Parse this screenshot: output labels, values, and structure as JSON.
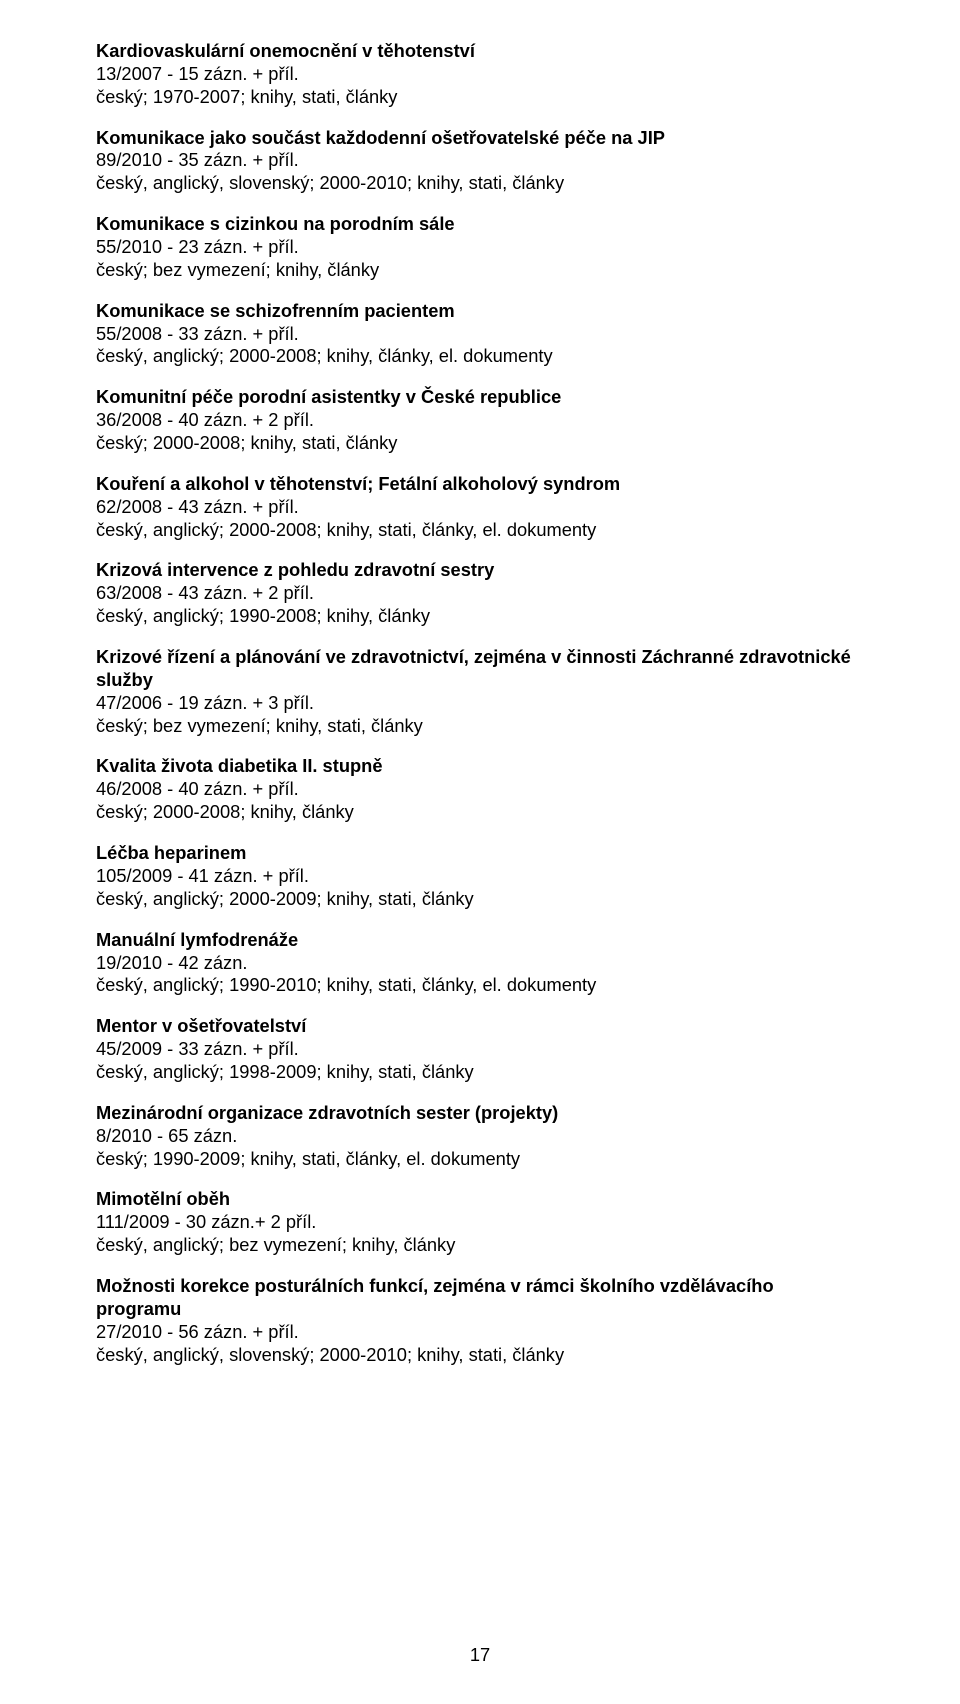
{
  "page_number": "17",
  "entries": [
    {
      "title": "Kardiovaskulární onemocnění v těhotenství",
      "pages": "13/2007 - 15 zázn. + příl.",
      "langs": "český; 1970-2007; knihy, stati, články"
    },
    {
      "title": "Komunikace jako součást každodenní ošetřovatelské péče na JIP",
      "pages": "89/2010 - 35 zázn. + příl.",
      "langs": "český, anglický, slovenský; 2000-2010; knihy, stati, články"
    },
    {
      "title": "Komunikace s cizinkou na porodním sále",
      "pages": "55/2010 - 23 zázn. + příl.",
      "langs": "český; bez vymezení; knihy, články"
    },
    {
      "title": "Komunikace se schizofrenním pacientem",
      "pages": "55/2008 - 33 zázn. + příl.",
      "langs": "český, anglický; 2000-2008; knihy, články, el. dokumenty"
    },
    {
      "title": "Komunitní péče porodní asistentky v České republice",
      "pages": "36/2008 - 40 zázn. + 2 příl.",
      "langs": "český; 2000-2008; knihy, stati, články"
    },
    {
      "title": "Kouření a alkohol v těhotenství; Fetální alkoholový syndrom",
      "pages": "62/2008 - 43 zázn. + příl.",
      "langs": "český, anglický; 2000-2008; knihy, stati, články, el. dokumenty"
    },
    {
      "title": "Krizová intervence z pohledu zdravotní sestry",
      "pages": "63/2008 - 43 zázn. + 2 příl.",
      "langs": "český, anglický; 1990-2008; knihy, články"
    },
    {
      "title": "Krizové řízení a plánování ve zdravotnictví, zejména v činnosti Záchranné zdravotnické služby",
      "pages": "47/2006 - 19 zázn. + 3 příl.",
      "langs": "český; bez vymezení; knihy, stati, články"
    },
    {
      "title": "Kvalita života diabetika II. stupně",
      "pages": "46/2008 - 40 zázn. + příl.",
      "langs": "český; 2000-2008; knihy, články"
    },
    {
      "title": "Léčba heparinem",
      "pages": "105/2009 - 41 zázn. + příl.",
      "langs": "český, anglický; 2000-2009; knihy, stati, články"
    },
    {
      "title": "Manuální lymfodrenáže",
      "pages": "19/2010 - 42 zázn.",
      "langs": "český, anglický; 1990-2010; knihy, stati, články, el. dokumenty"
    },
    {
      "title": "Mentor v ošetřovatelství",
      "pages": "45/2009 - 33 zázn. + příl.",
      "langs": "český, anglický; 1998-2009; knihy, stati, články"
    },
    {
      "title": "Mezinárodní organizace zdravotních sester (projekty)",
      "pages": "8/2010 - 65 zázn.",
      "langs": "český; 1990-2009; knihy, stati, články, el. dokumenty"
    },
    {
      "title": "Mimotělní oběh",
      "pages": "111/2009 - 30 zázn.+ 2 příl.",
      "langs": "český, anglický; bez vymezení; knihy, články"
    },
    {
      "title": "Možnosti korekce posturálních funkcí, zejména v rámci školního vzdělávacího programu",
      "pages": "27/2010 - 56 zázn. + příl.",
      "langs": "český, anglický, slovenský; 2000-2010; knihy, stati, články"
    }
  ]
}
